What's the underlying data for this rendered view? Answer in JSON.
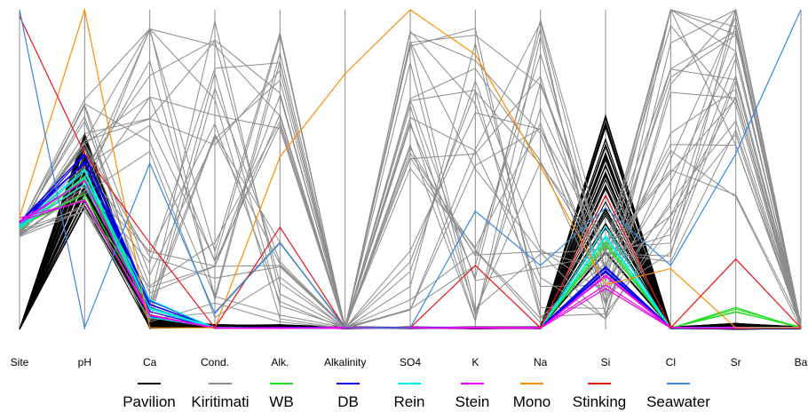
{
  "chart_data": {
    "type": "parallel-coordinates",
    "title": "",
    "axes": [
      "Site",
      "pH",
      "Ca",
      "Cond.",
      "Alk.",
      "Alkalinity",
      "SO4",
      "K",
      "Na",
      "Si",
      "Cl",
      "Sr",
      "Ba"
    ],
    "ylim": [
      0,
      1
    ],
    "grid": false,
    "legend_position": "bottom",
    "series": [
      {
        "name": "Pavilion",
        "color": "#000000",
        "n_lines": 48,
        "values": [
          0.0,
          0.5,
          0.02,
          0.01,
          0.01,
          0.005,
          0.005,
          0.005,
          0.005,
          0.45,
          0.005,
          0.01,
          0.005
        ]
      },
      {
        "name": "Kiritimati",
        "color": "#8c8c8c",
        "n_lines": 28,
        "values": [
          0.31,
          0.55,
          0.6,
          0.45,
          0.65,
          0.005,
          0.4,
          0.5,
          0.4,
          0.15,
          0.65,
          0.75,
          0.01
        ]
      },
      {
        "name": "WB",
        "color": "#22dd22",
        "n_lines": 4,
        "values": [
          0.32,
          0.44,
          0.06,
          0.005,
          0.005,
          0.005,
          0.005,
          0.005,
          0.005,
          0.28,
          0.005,
          0.06,
          0.005
        ]
      },
      {
        "name": "DB",
        "color": "#0000ee",
        "n_lines": 6,
        "values": [
          0.33,
          0.53,
          0.07,
          0.005,
          0.005,
          0.005,
          0.005,
          0.005,
          0.005,
          0.18,
          0.005,
          0.005,
          0.005
        ]
      },
      {
        "name": "Rein",
        "color": "#00eeee",
        "n_lines": 4,
        "values": [
          0.32,
          0.48,
          0.08,
          0.005,
          0.005,
          0.005,
          0.005,
          0.005,
          0.005,
          0.3,
          0.005,
          0.005,
          0.005
        ]
      },
      {
        "name": "Stein",
        "color": "#ee00ee",
        "n_lines": 4,
        "values": [
          0.34,
          0.42,
          0.05,
          0.005,
          0.005,
          0.005,
          0.005,
          0.005,
          0.005,
          0.15,
          0.005,
          0.005,
          0.005
        ]
      },
      {
        "name": "Mono",
        "color": "#ff8c00",
        "n_lines": 1,
        "values": [
          0.35,
          1.0,
          0.005,
          0.005,
          0.54,
          0.8,
          1.0,
          0.86,
          0.51,
          0.14,
          0.19,
          0.005,
          0.005
        ]
      },
      {
        "name": "Stinking",
        "color": "#ee1111",
        "n_lines": 1,
        "values": [
          0.98,
          0.55,
          0.27,
          0.005,
          0.32,
          0.005,
          0.005,
          0.2,
          0.005,
          0.42,
          0.005,
          0.22,
          0.005
        ]
      },
      {
        "name": "Seawater",
        "color": "#3388dd",
        "n_lines": 1,
        "values": [
          1.0,
          0.005,
          0.52,
          0.05,
          0.27,
          0.005,
          0.005,
          0.37,
          0.2,
          0.38,
          0.2,
          0.55,
          1.0
        ]
      }
    ]
  }
}
